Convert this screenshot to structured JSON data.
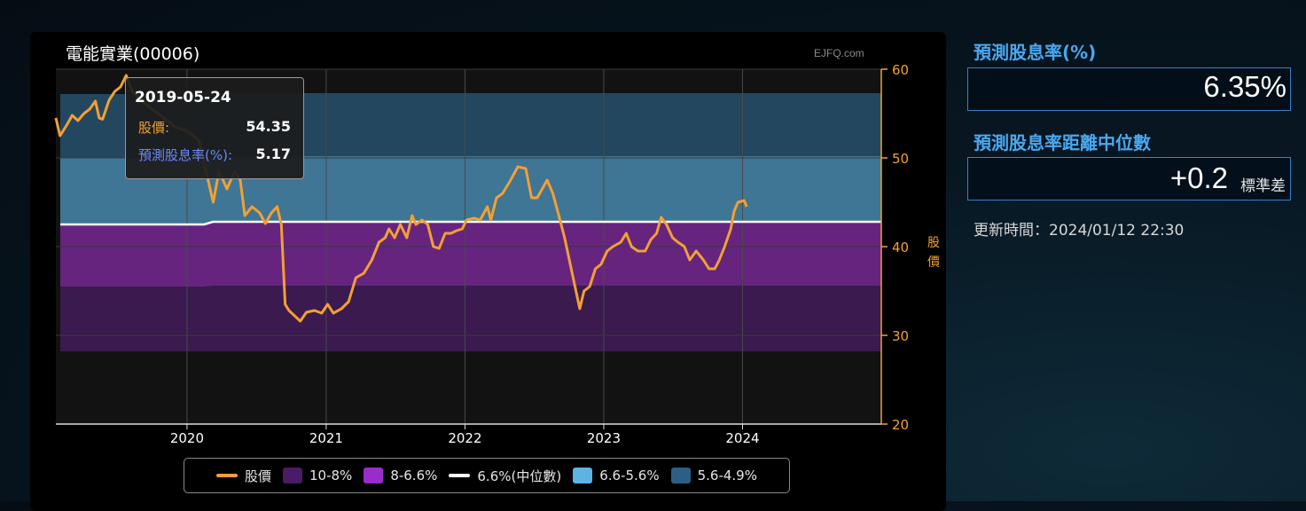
{
  "chart": {
    "title": "電能實業(00006)",
    "watermark": "EJFQ.com",
    "tooltip": {
      "date": "2019-05-24",
      "price_label": "股價:",
      "price_value": "54.35",
      "yield_label": "預測股息率(%):",
      "yield_value": "5.17"
    },
    "legend": [
      {
        "label": "股價",
        "color": "#f2a033",
        "kind": "line"
      },
      {
        "label": "10-8%",
        "color": "#4a1c66",
        "kind": "box"
      },
      {
        "label": "8-6.6%",
        "color": "#9a2dc8",
        "kind": "box"
      },
      {
        "label": "6.6%(中位數)",
        "color": "#ffffff",
        "kind": "line"
      },
      {
        "label": "6.6-5.6%",
        "color": "#5fb3e4",
        "kind": "box"
      },
      {
        "label": "5.6-4.9%",
        "color": "#2c5f84",
        "kind": "box"
      }
    ]
  },
  "chart_data": {
    "type": "line",
    "title": "電能實業(00006)",
    "ylabel": "股價",
    "ylim": [
      20,
      60
    ],
    "yticks": [
      20,
      30,
      40,
      50,
      60
    ],
    "xlim": [
      "2019-01-21",
      "2024-12-31"
    ],
    "xticks": [
      "2020",
      "2021",
      "2022",
      "2023",
      "2024"
    ],
    "grid": true,
    "legend_position": "bottom",
    "bands": [
      {
        "name": "10-8%",
        "color": "#3a1a4f",
        "lower": 28.2,
        "upper": 35.5,
        "lower_late": 28.2,
        "upper_late": 35.6
      },
      {
        "name": "8-6.6%",
        "color": "#66247f",
        "lower": 35.5,
        "upper": 42.5,
        "lower_late": 35.6,
        "upper_late": 42.8
      },
      {
        "name": "6.6-5.6%",
        "color": "#3f7595",
        "lower": 42.5,
        "upper": 50.0,
        "lower_late": 42.8,
        "upper_late": 50.2
      },
      {
        "name": "5.6-4.9%",
        "color": "#23475f",
        "lower": 50.0,
        "upper": 57.2,
        "lower_late": 50.2,
        "upper_late": 57.3
      }
    ],
    "median": {
      "name": "6.6%(中位數)",
      "value": 42.5,
      "value_late": 42.8,
      "step_date": "2020-02-15"
    },
    "series": [
      {
        "name": "股價",
        "color": "#f2a033",
        "points": [
          [
            "2019-01-21",
            54.5
          ],
          [
            "2019-02-01",
            52.5
          ],
          [
            "2019-02-20",
            53.8
          ],
          [
            "2019-03-05",
            54.8
          ],
          [
            "2019-03-20",
            54.2
          ],
          [
            "2019-04-05",
            55.0
          ],
          [
            "2019-04-20",
            55.5
          ],
          [
            "2019-05-05",
            56.4
          ],
          [
            "2019-05-15",
            54.5
          ],
          [
            "2019-05-24",
            54.35
          ],
          [
            "2019-06-10",
            56.5
          ],
          [
            "2019-06-25",
            57.5
          ],
          [
            "2019-07-10",
            58.0
          ],
          [
            "2019-07-25",
            59.3
          ],
          [
            "2019-08-10",
            57.5
          ],
          [
            "2019-09-01",
            56.5
          ],
          [
            "2019-10-01",
            55.5
          ],
          [
            "2019-11-01",
            54.5
          ],
          [
            "2019-12-01",
            53.5
          ],
          [
            "2020-01-02",
            53.0
          ],
          [
            "2020-02-01",
            52.0
          ],
          [
            "2020-03-10",
            45.0
          ],
          [
            "2020-03-25",
            48.5
          ],
          [
            "2020-04-15",
            46.5
          ],
          [
            "2020-05-05",
            48.5
          ],
          [
            "2020-05-20",
            47.5
          ],
          [
            "2020-06-01",
            43.5
          ],
          [
            "2020-06-20",
            44.5
          ],
          [
            "2020-07-10",
            43.8
          ],
          [
            "2020-07-25",
            42.6
          ],
          [
            "2020-08-10",
            43.8
          ],
          [
            "2020-08-25",
            44.5
          ],
          [
            "2020-09-05",
            42.5
          ],
          [
            "2020-09-15",
            33.5
          ],
          [
            "2020-09-25",
            32.8
          ],
          [
            "2020-10-10",
            32.2
          ],
          [
            "2020-10-25",
            31.6
          ],
          [
            "2020-11-10",
            32.6
          ],
          [
            "2020-12-01",
            32.8
          ],
          [
            "2020-12-20",
            32.5
          ],
          [
            "2021-01-05",
            33.5
          ],
          [
            "2021-01-20",
            32.5
          ],
          [
            "2021-02-10",
            33.0
          ],
          [
            "2021-03-01",
            33.8
          ],
          [
            "2021-03-20",
            36.5
          ],
          [
            "2021-04-10",
            37.0
          ],
          [
            "2021-05-01",
            38.5
          ],
          [
            "2021-05-20",
            40.5
          ],
          [
            "2021-06-05",
            41.0
          ],
          [
            "2021-06-15",
            42.0
          ],
          [
            "2021-06-30",
            41.0
          ],
          [
            "2021-07-15",
            42.5
          ],
          [
            "2021-08-01",
            41.0
          ],
          [
            "2021-08-15",
            43.5
          ],
          [
            "2021-08-25",
            42.5
          ],
          [
            "2021-09-10",
            43.0
          ],
          [
            "2021-09-25",
            42.5
          ],
          [
            "2021-10-10",
            40.0
          ],
          [
            "2021-10-25",
            39.8
          ],
          [
            "2021-11-10",
            41.5
          ],
          [
            "2021-11-25",
            41.5
          ],
          [
            "2021-12-10",
            41.8
          ],
          [
            "2021-12-25",
            42.0
          ],
          [
            "2022-01-05",
            43.0
          ],
          [
            "2022-01-25",
            43.2
          ],
          [
            "2022-02-10",
            43.0
          ],
          [
            "2022-03-01",
            44.5
          ],
          [
            "2022-03-10",
            43.0
          ],
          [
            "2022-03-25",
            45.5
          ],
          [
            "2022-04-10",
            46.0
          ],
          [
            "2022-05-01",
            47.5
          ],
          [
            "2022-05-20",
            49.0
          ],
          [
            "2022-06-10",
            48.8
          ],
          [
            "2022-06-25",
            45.5
          ],
          [
            "2022-07-10",
            45.5
          ],
          [
            "2022-08-05",
            47.5
          ],
          [
            "2022-08-20",
            46.0
          ],
          [
            "2022-09-05",
            43.5
          ],
          [
            "2022-09-20",
            41.0
          ],
          [
            "2022-10-05",
            38.0
          ],
          [
            "2022-10-20",
            35.0
          ],
          [
            "2022-10-30",
            33.0
          ],
          [
            "2022-11-10",
            35.0
          ],
          [
            "2022-11-25",
            35.5
          ],
          [
            "2022-12-10",
            37.5
          ],
          [
            "2022-12-25",
            38.0
          ],
          [
            "2023-01-10",
            39.5
          ],
          [
            "2023-01-25",
            40.0
          ],
          [
            "2023-02-15",
            40.5
          ],
          [
            "2023-03-01",
            41.5
          ],
          [
            "2023-03-15",
            40.0
          ],
          [
            "2023-04-01",
            39.5
          ],
          [
            "2023-04-20",
            39.5
          ],
          [
            "2023-05-05",
            40.8
          ],
          [
            "2023-05-20",
            41.5
          ],
          [
            "2023-06-01",
            43.3
          ],
          [
            "2023-06-15",
            42.5
          ],
          [
            "2023-07-01",
            41.0
          ],
          [
            "2023-07-15",
            40.5
          ],
          [
            "2023-08-01",
            40.0
          ],
          [
            "2023-08-15",
            38.5
          ],
          [
            "2023-09-01",
            39.5
          ],
          [
            "2023-09-20",
            38.5
          ],
          [
            "2023-10-05",
            37.5
          ],
          [
            "2023-10-20",
            37.5
          ],
          [
            "2023-11-01",
            38.5
          ],
          [
            "2023-11-15",
            40.0
          ],
          [
            "2023-12-01",
            42.0
          ],
          [
            "2023-12-10",
            44.0
          ],
          [
            "2023-12-20",
            45.0
          ],
          [
            "2024-01-05",
            45.2
          ],
          [
            "2024-01-12",
            44.5
          ]
        ]
      }
    ]
  },
  "sidebar": {
    "yield_label": "預測股息率(%)",
    "yield_value": "6.35%",
    "zscore_label": "預測股息率距離中位數",
    "zscore_value": "+0.2",
    "zscore_unit": "標準差",
    "update_time": "更新時間：2024/01/12 22:30"
  }
}
